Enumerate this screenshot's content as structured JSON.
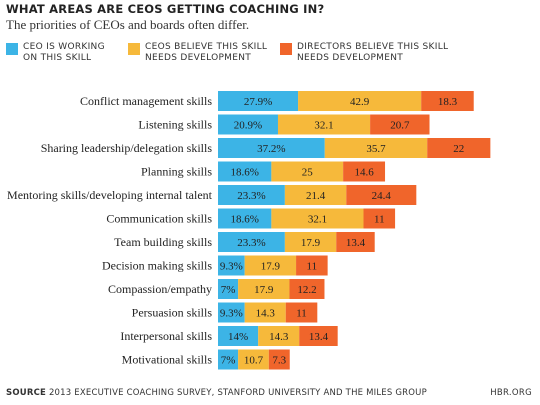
{
  "title": "WHAT AREAS ARE CEOS GETTING COACHING IN?",
  "subtitle": "The priorities of CEOs and boards often differ.",
  "colors": {
    "ceo": "#3cb4e6",
    "ceos_believe": "#f6b93b",
    "directors": "#f0652b"
  },
  "legend": [
    {
      "label": "CEO IS WORKING\nON THIS SKILL",
      "color": "#3cb4e6"
    },
    {
      "label": "CEOS BELIEVE THIS SKILL\nNEEDS DEVELOPMENT",
      "color": "#f6b93b"
    },
    {
      "label": "DIRECTORS BELIEVE THIS SKILL\nNEEDS DEVELOPMENT",
      "color": "#f0652b"
    }
  ],
  "chart_data": {
    "type": "bar",
    "orientation": "horizontal",
    "stacked": true,
    "categories": [
      "Conflict management skills",
      "Listening skills",
      "Sharing leadership/delegation skills",
      "Planning skills",
      "Mentoring skills/developing internal talent",
      "Communication skills",
      "Team building skills",
      "Decision making skills",
      "Compassion/empathy",
      "Persuasion skills",
      "Interpersonal skills",
      "Motivational skills"
    ],
    "series": [
      {
        "name": "CEO IS WORKING ON THIS SKILL",
        "values": [
          27.9,
          20.9,
          37.2,
          18.6,
          23.3,
          18.6,
          23.3,
          9.3,
          7,
          9.3,
          14,
          7
        ],
        "labels": [
          "27.9%",
          "20.9%",
          "37.2%",
          "18.6%",
          "23.3%",
          "18.6%",
          "23.3%",
          "9.3%",
          "7%",
          "9.3%",
          "14%",
          "7%"
        ]
      },
      {
        "name": "CEOS BELIEVE THIS SKILL NEEDS DEVELOPMENT",
        "values": [
          42.9,
          32.1,
          35.7,
          25,
          21.4,
          32.1,
          17.9,
          17.9,
          17.9,
          14.3,
          14.3,
          10.7
        ],
        "labels": [
          "42.9",
          "32.1",
          "35.7",
          "25",
          "21.4",
          "32.1",
          "17.9",
          "17.9",
          "17.9",
          "14.3",
          "14.3",
          "10.7"
        ]
      },
      {
        "name": "DIRECTORS BELIEVE THIS SKILL NEEDS DEVELOPMENT",
        "values": [
          18.3,
          20.7,
          22,
          14.6,
          24.4,
          11,
          13.4,
          11,
          12.2,
          11,
          13.4,
          7.3
        ],
        "labels": [
          "18.3",
          "20.7",
          "22",
          "14.6",
          "24.4",
          "11",
          "13.4",
          "11",
          "12.2",
          "11",
          "13.4",
          "7.3"
        ]
      }
    ]
  },
  "footer": {
    "source_label": "SOURCE",
    "source_text": " 2013 EXECUTIVE COACHING SURVEY, STANFORD UNIVERSITY AND THE MILES GROUP",
    "credit": "HBR.ORG"
  }
}
